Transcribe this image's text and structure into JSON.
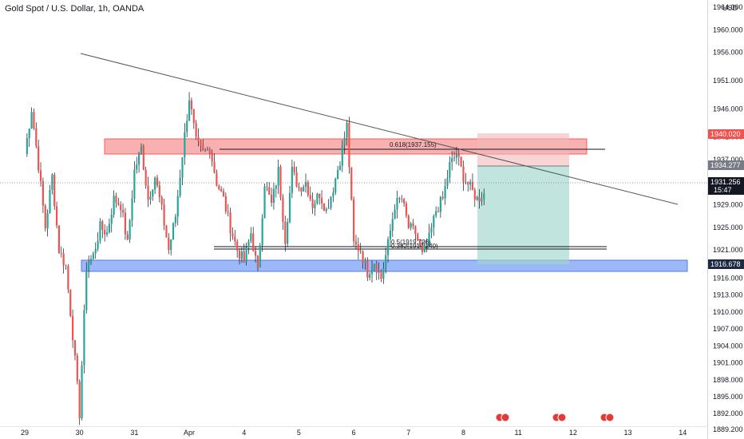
{
  "chart_title": "Gold Spot / U.S. Dollar, 1h, OANDA",
  "axis_currency": "USD",
  "colors": {
    "up": "#26a69a",
    "down": "#ef5350",
    "wick": "#131722",
    "resistance_zone": "#ef5350",
    "support_zone": "#4c7df0",
    "target_zone": "#9fd5cd",
    "stop_zone": "#f3b7b9",
    "trendline": "#555555"
  },
  "price_tags": {
    "upper_red": "1940.020",
    "position": "1934.277",
    "current_price": "1931.256",
    "countdown": "15:47",
    "support": "1916.678"
  },
  "annotations": {
    "fib_upper": "0.618(1937.155)",
    "fib_lower_a": "0.5(1919.726)",
    "fib_lower_b": "0.382(1919.240)"
  },
  "chart_data": {
    "type": "candlestick",
    "title": "Gold Spot / U.S. Dollar, 1h, OANDA",
    "ylim": [
      1888.0,
      1965.0
    ],
    "y_ticks": [
      {
        "label": "1964.000",
        "value": 1964.0
      },
      {
        "label": "1960.000",
        "value": 1960.0
      },
      {
        "label": "1956.000",
        "value": 1956.0
      },
      {
        "label": "1951.000",
        "value": 1951.0
      },
      {
        "label": "1946.000",
        "value": 1946.0
      },
      {
        "label": "1941.000",
        "value": 1941.0
      },
      {
        "label": "1937.000",
        "value": 1937.0
      },
      {
        "label": "1933.000",
        "value": 1933.0
      },
      {
        "label": "1929.000",
        "value": 1929.0
      },
      {
        "label": "1925.000",
        "value": 1925.0
      },
      {
        "label": "1921.000",
        "value": 1921.0
      },
      {
        "label": "1916.000",
        "value": 1916.0
      },
      {
        "label": "1913.000",
        "value": 1913.0
      },
      {
        "label": "1910.000",
        "value": 1910.0
      },
      {
        "label": "1907.000",
        "value": 1907.0
      },
      {
        "label": "1904.000",
        "value": 1904.0
      },
      {
        "label": "1901.000",
        "value": 1901.0
      },
      {
        "label": "1898.000",
        "value": 1898.0
      },
      {
        "label": "1895.000",
        "value": 1895.0
      },
      {
        "label": "1892.000",
        "value": 1892.0
      },
      {
        "label": "1889.200",
        "value": 1889.2
      }
    ],
    "x_ticks": [
      {
        "label": "29",
        "bar": 0
      },
      {
        "label": "30",
        "bar": 24
      },
      {
        "label": "31",
        "bar": 48
      },
      {
        "label": "Apr",
        "bar": 72
      },
      {
        "label": "4",
        "bar": 96
      },
      {
        "label": "5",
        "bar": 120
      },
      {
        "label": "6",
        "bar": 144
      },
      {
        "label": "7",
        "bar": 168
      },
      {
        "label": "8",
        "bar": 192
      },
      {
        "label": "11",
        "bar": 216
      },
      {
        "label": "12",
        "bar": 240
      },
      {
        "label": "13",
        "bar": 264
      },
      {
        "label": "14",
        "bar": 288
      }
    ],
    "anchors": [
      [
        0,
        1938
      ],
      [
        3,
        1946
      ],
      [
        6,
        1936
      ],
      [
        9,
        1925
      ],
      [
        12,
        1934
      ],
      [
        15,
        1921
      ],
      [
        18,
        1918
      ],
      [
        21,
        1906
      ],
      [
        24,
        1892
      ],
      [
        27,
        1918
      ],
      [
        30,
        1920
      ],
      [
        33,
        1925
      ],
      [
        36,
        1924
      ],
      [
        39,
        1930
      ],
      [
        42,
        1929
      ],
      [
        45,
        1922
      ],
      [
        48,
        1935
      ],
      [
        51,
        1939
      ],
      [
        54,
        1930
      ],
      [
        57,
        1934
      ],
      [
        60,
        1928
      ],
      [
        63,
        1921
      ],
      [
        66,
        1927
      ],
      [
        69,
        1938
      ],
      [
        72,
        1948
      ],
      [
        75,
        1940
      ],
      [
        78,
        1938
      ],
      [
        81,
        1939
      ],
      [
        84,
        1933
      ],
      [
        87,
        1930
      ],
      [
        90,
        1925
      ],
      [
        93,
        1921
      ],
      [
        96,
        1919
      ],
      [
        99,
        1924
      ],
      [
        102,
        1917
      ],
      [
        105,
        1933
      ],
      [
        108,
        1929
      ],
      [
        111,
        1935
      ],
      [
        114,
        1923
      ],
      [
        117,
        1935
      ],
      [
        120,
        1932
      ],
      [
        123,
        1933
      ],
      [
        126,
        1929
      ],
      [
        129,
        1931
      ],
      [
        132,
        1928
      ],
      [
        135,
        1932
      ],
      [
        138,
        1937
      ],
      [
        141,
        1943
      ],
      [
        144,
        1922
      ],
      [
        147,
        1921
      ],
      [
        150,
        1917
      ],
      [
        153,
        1919
      ],
      [
        156,
        1916
      ],
      [
        159,
        1922
      ],
      [
        162,
        1929
      ],
      [
        165,
        1930
      ],
      [
        168,
        1925
      ],
      [
        171,
        1924
      ],
      [
        174,
        1920
      ],
      [
        177,
        1923
      ],
      [
        180,
        1928
      ],
      [
        183,
        1930
      ],
      [
        186,
        1936
      ],
      [
        189,
        1938
      ],
      [
        192,
        1934
      ],
      [
        195,
        1932
      ],
      [
        198,
        1930
      ],
      [
        201,
        1931
      ]
    ]
  }
}
